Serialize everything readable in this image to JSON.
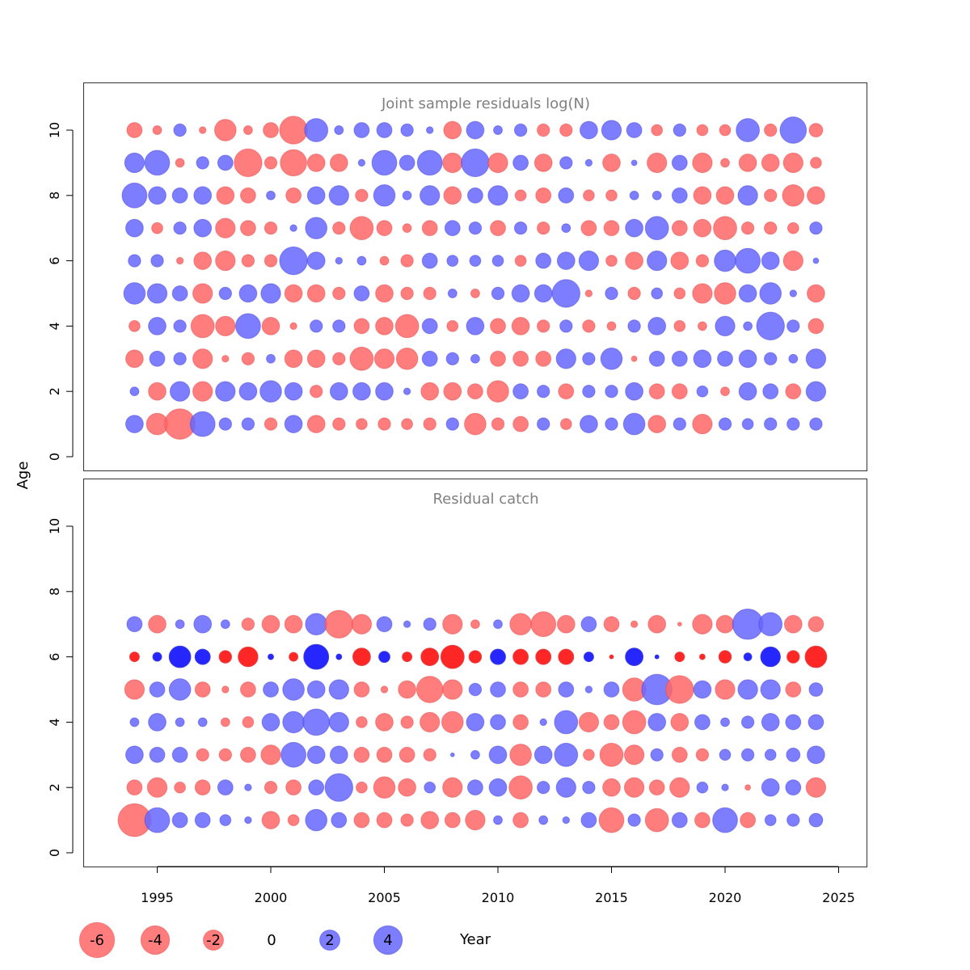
{
  "chart_data": {
    "type": "scatter",
    "subtype": "bubble",
    "y_axis_title": "Age",
    "x_axis_title": "Year",
    "x_range": [
      1992,
      2025
    ],
    "x_ticks": [
      "1995",
      "2000",
      "2005",
      "2010",
      "2015",
      "2020",
      "2025"
    ],
    "y_range": [
      0,
      11
    ],
    "y_ticks": [
      "0",
      "2",
      "4",
      "6",
      "8",
      "10"
    ],
    "years": [
      1994,
      1995,
      1996,
      1997,
      1998,
      1999,
      2000,
      2001,
      2002,
      2003,
      2004,
      2005,
      2006,
      2007,
      2008,
      2009,
      2010,
      2011,
      2012,
      2013,
      2014,
      2015,
      2016,
      2017,
      2018,
      2019,
      2020,
      2021,
      2022,
      2023,
      2024
    ],
    "colors": {
      "positive": "#6666ff",
      "negative": "#ff6666",
      "positive_strong": "#1a1aff",
      "negative_strong": "#ff1a1a"
    },
    "panels": [
      {
        "title": "Joint sample residuals log(N)",
        "ages": [
          1,
          2,
          3,
          4,
          5,
          6,
          7,
          8,
          9,
          10
        ],
        "residuals": {
          "1": [
            2,
            -3,
            -6,
            4,
            1,
            1,
            -1,
            2,
            -2,
            -1,
            -0.8,
            -1,
            -0.8,
            -1,
            1,
            -3,
            -1,
            -1.5,
            1,
            -0.8,
            2,
            1,
            3,
            -2,
            1,
            -2.5,
            1,
            0.8,
            1,
            1,
            1
          ],
          "2": [
            0.5,
            -2,
            2.5,
            -2.5,
            2.5,
            2,
            3,
            2,
            -1,
            2,
            2,
            2,
            0.3,
            -2,
            -2,
            -1.5,
            -3,
            1.5,
            1,
            -1.5,
            1,
            1,
            2,
            -1.5,
            -1.5,
            0.8,
            -0.5,
            2,
            1.5,
            -1.5,
            2.5
          ],
          "3": [
            -2,
            1.5,
            1,
            -2.5,
            -0.3,
            -1,
            0.5,
            -2,
            -2,
            -1,
            -3.5,
            -2.5,
            -3,
            1.5,
            1,
            0.5,
            -1.5,
            -1.5,
            -1.5,
            2.5,
            1,
            3,
            -0.2,
            1.5,
            1.5,
            2,
            1.5,
            2,
            1,
            0.5,
            2.5
          ],
          "4": [
            -0.8,
            2,
            1,
            -3.5,
            -2.5,
            4,
            -2,
            -0.3,
            1,
            1,
            -1.5,
            -2,
            -3.5,
            1.5,
            -0.8,
            2,
            -1.5,
            -2,
            -1,
            1,
            -1,
            -0.5,
            1,
            2,
            -0.8,
            -0.5,
            2.5,
            0.5,
            5,
            1,
            -1.5
          ],
          "5": [
            3,
            2.5,
            1.5,
            -2.5,
            1,
            2,
            2.5,
            -2,
            -2,
            -1,
            1.5,
            -2,
            -1,
            -1,
            0.5,
            -0.5,
            1,
            2,
            2,
            5,
            -0.3,
            1,
            -1,
            0.8,
            -0.8,
            -2.5,
            -3,
            2,
            3,
            0.3,
            -2
          ],
          "6": [
            1,
            1,
            -0.3,
            -2,
            -2.5,
            -1,
            -1,
            5,
            2,
            0.3,
            0.5,
            -0.5,
            -1,
            1.5,
            0.8,
            0.8,
            0.8,
            -0.8,
            1.5,
            2,
            2.5,
            -0.8,
            -2,
            2.5,
            -2,
            -1,
            3,
            4,
            2,
            -2.5,
            0.2
          ],
          "7": [
            2,
            -0.8,
            1,
            2,
            -2.5,
            -1.5,
            -1,
            0.3,
            3,
            -1,
            -3.5,
            -1.5,
            -0.5,
            -1.5,
            1.5,
            1,
            -1.5,
            1,
            -1,
            0.5,
            -1.5,
            -1.5,
            2,
            3.5,
            -1.5,
            -2,
            -3.5,
            -1,
            -1,
            -0.8,
            1
          ],
          "8": [
            4,
            2,
            1.5,
            2,
            -2,
            -1.5,
            0.5,
            -1.5,
            2,
            2.5,
            -1,
            3,
            0.5,
            2.5,
            -2,
            1.5,
            2.5,
            -0.8,
            -1.5,
            1.5,
            -0.8,
            -0.8,
            0.5,
            0.5,
            1.5,
            -2,
            -2,
            2.5,
            -1,
            -3,
            -2
          ],
          "9": [
            2.5,
            4,
            -0.5,
            1,
            1.5,
            -5,
            -1,
            -4.5,
            -2,
            -2,
            0.3,
            4,
            1.5,
            4,
            -2.5,
            5,
            -2.5,
            1.5,
            -2,
            1,
            0.3,
            -2,
            0.2,
            -2.5,
            1.5,
            -2.5,
            -0.5,
            -2,
            -2,
            -2.5,
            -0.8
          ],
          "10": [
            -1.5,
            -0.5,
            1,
            -0.3,
            -3,
            -0.5,
            -1.5,
            -5,
            3.5,
            0.5,
            1.5,
            1.5,
            1,
            0.3,
            -2,
            2,
            0.5,
            1,
            -1,
            -1,
            2,
            2.5,
            1.5,
            -0.8,
            1,
            -0.8,
            -0.8,
            3.5,
            -1,
            4.5,
            -1.2
          ]
        }
      },
      {
        "title": "Residual catch",
        "ages": [
          1,
          2,
          3,
          4,
          5,
          6,
          7
        ],
        "residuals": {
          "1": [
            -7,
            4,
            1.5,
            1.5,
            0.8,
            0.3,
            -2,
            -0.8,
            3,
            1.5,
            -1.5,
            -1.5,
            -1,
            -2,
            -1.5,
            -2.5,
            0.5,
            -1.5,
            0.5,
            0.3,
            1.5,
            -4,
            1,
            -3.5,
            1.5,
            -1.5,
            4,
            -1.5,
            0.8,
            1,
            1.2
          ],
          "2": [
            -1.5,
            -2.5,
            -0.8,
            -1.5,
            1.5,
            0.3,
            -1,
            -1.5,
            1.5,
            5,
            -0.8,
            -3,
            -2,
            0.8,
            -2.5,
            1.5,
            2,
            -3.5,
            1,
            2.5,
            1,
            -2,
            -2.5,
            -1.5,
            -2.5,
            0.8,
            0.3,
            -0.2,
            2,
            1.5,
            -2.5
          ],
          "3": [
            2,
            1.5,
            1.5,
            -1,
            -1,
            -1.5,
            -2.5,
            4,
            2,
            2,
            -1.5,
            -1.5,
            -1.5,
            -1,
            0.1,
            0.5,
            2,
            -3,
            2,
            3.5,
            -0.8,
            -3.5,
            -2.5,
            1,
            -1.5,
            -1,
            0.8,
            1,
            0.8,
            1.2,
            2
          ],
          "4": [
            0.5,
            2,
            0.5,
            0.5,
            -0.5,
            -0.8,
            2,
            3,
            4.5,
            2.5,
            -0.8,
            -2,
            -1,
            -2.5,
            -3,
            2,
            1.5,
            -1.5,
            0.3,
            3.5,
            -2.5,
            -1.5,
            -3.5,
            2,
            -2,
            1.5,
            0.5,
            1,
            2,
            1.5,
            1.5
          ],
          "5": [
            -2.5,
            1.5,
            3,
            -1.5,
            -0.3,
            -1.5,
            1.5,
            3,
            2,
            2.5,
            -1.5,
            -0.3,
            -2,
            -4.5,
            -2.5,
            1,
            1.5,
            -1.5,
            -1.5,
            1.5,
            0.3,
            1.5,
            -3.5,
            6,
            -5,
            2,
            -2.5,
            2.5,
            2.5,
            -1.5,
            1.2
          ],
          "6": [
            -0.6,
            0.5,
            3,
            1.5,
            -1,
            -2.5,
            0.2,
            -0.5,
            4,
            0.2,
            -2,
            0.8,
            -0.6,
            -2,
            -3.5,
            -1,
            1.5,
            -1.5,
            -1.5,
            -1.5,
            0.6,
            -0.1,
            2,
            0.1,
            -0.6,
            -0.2,
            -1,
            0.4,
            2.5,
            -1,
            -3
          ],
          "7": [
            1.5,
            -2,
            0.5,
            2,
            0.5,
            -1,
            -2,
            -2,
            3,
            -5,
            -2.5,
            1.5,
            0.3,
            1,
            -2.5,
            -0.5,
            0.5,
            -3,
            -4,
            -2,
            1.5,
            -1.5,
            -0.3,
            -2,
            -0.1,
            -2.5,
            -2,
            6,
            3.5,
            -2,
            -1.5
          ]
        },
        "strong_age": 6
      }
    ],
    "legend": {
      "entries": [
        {
          "value": -6,
          "label": "-6"
        },
        {
          "value": -4,
          "label": "-4"
        },
        {
          "value": -2,
          "label": "-2"
        },
        {
          "value": 0,
          "label": "0"
        },
        {
          "value": 2,
          "label": "2"
        },
        {
          "value": 4,
          "label": "4"
        }
      ],
      "xlabel": "Year"
    }
  }
}
